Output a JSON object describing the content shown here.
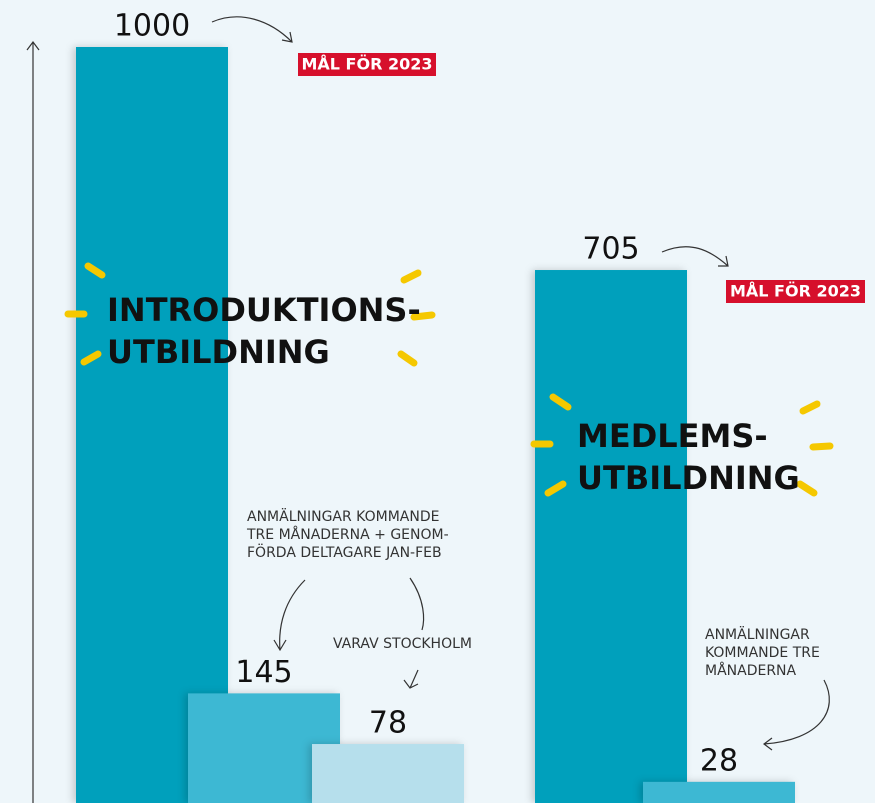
{
  "chart_data": {
    "type": "bar",
    "ylim": [
      0,
      1000
    ],
    "groups": [
      {
        "title_lines": [
          "INTRODUKTIONS-",
          "UTBILDNING"
        ],
        "goal_label": "MÅL FÖR 2023",
        "bars": [
          {
            "value": 1000,
            "color": "#00a0bc"
          },
          {
            "value": 145,
            "color": "#3db8d3"
          },
          {
            "value": 78,
            "color": "#b6dfec"
          }
        ],
        "notes": [
          {
            "lines": [
              "ANMÄLNINGAR KOMMANDE",
              "TRE MÅNADERNA + GENOM-",
              "FÖRDA DELTAGARE JAN-FEB"
            ]
          },
          {
            "lines": [
              "VARAV STOCKHOLM"
            ]
          }
        ]
      },
      {
        "title_lines": [
          "MEDLEMS-",
          "UTBILDNING"
        ],
        "goal_label": "MÅL FÖR 2023",
        "bars": [
          {
            "value": 705,
            "color": "#00a0bc"
          },
          {
            "value": 28,
            "color": "#3db8d3"
          }
        ],
        "notes": [
          {
            "lines": [
              "ANMÄLNINGAR",
              "KOMMANDE TRE",
              "MÅNADERNA"
            ]
          }
        ]
      }
    ]
  }
}
